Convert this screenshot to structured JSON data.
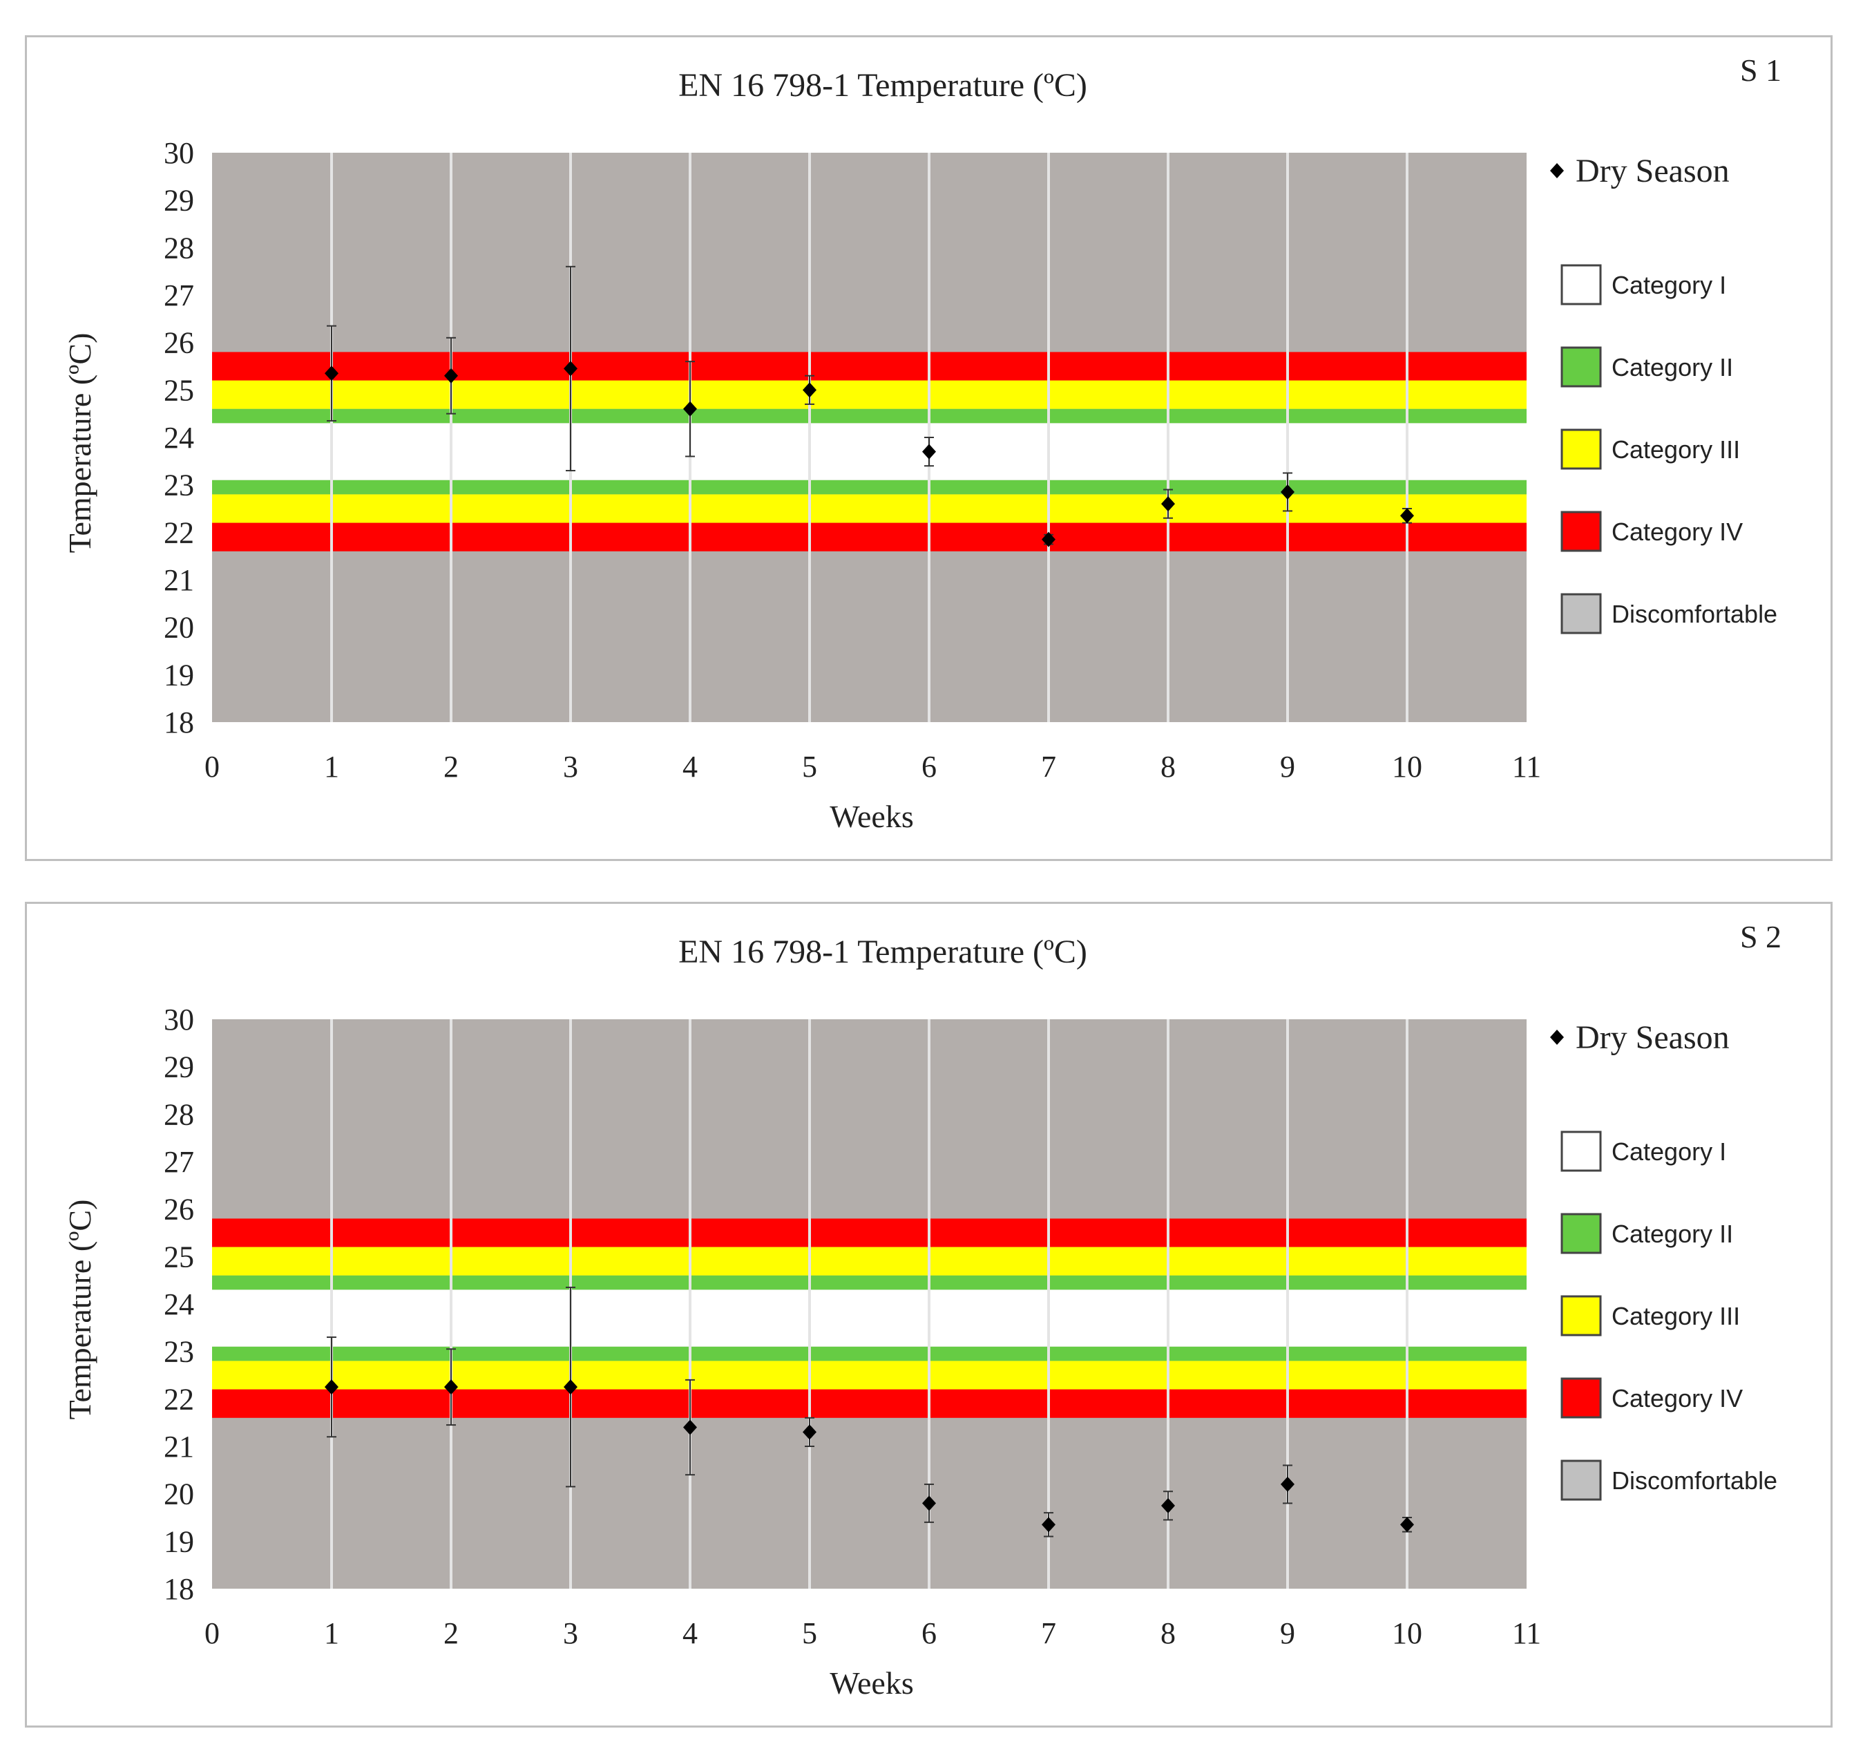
{
  "chart_data": [
    {
      "type": "scatter",
      "panel_label": "S 1",
      "title": "EN 16 798-1 Temperature (ºC)",
      "xlabel": "Weeks",
      "ylabel": "Temperature (ºC)",
      "xlim": [
        0,
        11
      ],
      "ylim": [
        18,
        30
      ],
      "x_ticks": [
        "0",
        "1",
        "2",
        "3",
        "4",
        "5",
        "6",
        "7",
        "8",
        "9",
        "10",
        "11"
      ],
      "y_ticks": [
        "18",
        "19",
        "20",
        "21",
        "22",
        "23",
        "24",
        "25",
        "26",
        "27",
        "28",
        "29",
        "30"
      ],
      "series": [
        {
          "name": "Dry Season",
          "x": [
            1,
            2,
            3,
            4,
            5,
            6,
            7,
            8,
            9,
            10
          ],
          "y": [
            25.35,
            25.3,
            25.45,
            24.6,
            25.0,
            23.7,
            21.85,
            22.6,
            22.85,
            22.35
          ],
          "err": [
            1.0,
            0.8,
            2.15,
            1.0,
            0.3,
            0.3,
            0.1,
            0.3,
            0.4,
            0.15
          ]
        }
      ],
      "bands": [
        {
          "category": "Category IV",
          "from": 25.2,
          "to": 25.8,
          "color": "#ff0000"
        },
        {
          "category": "Category III",
          "from": 24.6,
          "to": 25.2,
          "color": "#ffff00"
        },
        {
          "category": "Category II",
          "from": 24.3,
          "to": 24.6,
          "color": "#66cc44"
        },
        {
          "category": "Category I",
          "from": 23.1,
          "to": 24.3,
          "color": "#ffffff"
        },
        {
          "category": "Category II",
          "from": 22.8,
          "to": 23.1,
          "color": "#66cc44"
        },
        {
          "category": "Category III",
          "from": 22.2,
          "to": 22.8,
          "color": "#ffff00"
        },
        {
          "category": "Category IV",
          "from": 21.6,
          "to": 22.2,
          "color": "#ff0000"
        }
      ]
    },
    {
      "type": "scatter",
      "panel_label": "S 2",
      "title": "EN 16 798-1 Temperature (ºC)",
      "xlabel": "Weeks",
      "ylabel": "Temperature (ºC)",
      "xlim": [
        0,
        11
      ],
      "ylim": [
        18,
        30
      ],
      "x_ticks": [
        "0",
        "1",
        "2",
        "3",
        "4",
        "5",
        "6",
        "7",
        "8",
        "9",
        "10",
        "11"
      ],
      "y_ticks": [
        "18",
        "19",
        "20",
        "21",
        "22",
        "23",
        "24",
        "25",
        "26",
        "27",
        "28",
        "29",
        "30"
      ],
      "series": [
        {
          "name": "Dry Season",
          "x": [
            1,
            2,
            3,
            4,
            5,
            6,
            7,
            8,
            9,
            10
          ],
          "y": [
            22.25,
            22.25,
            22.25,
            21.4,
            21.3,
            19.8,
            19.35,
            19.75,
            20.2,
            19.35
          ],
          "err": [
            1.05,
            0.8,
            2.1,
            1.0,
            0.3,
            0.4,
            0.25,
            0.3,
            0.4,
            0.15
          ]
        }
      ],
      "bands": [
        {
          "category": "Category IV",
          "from": 25.2,
          "to": 25.8,
          "color": "#ff0000"
        },
        {
          "category": "Category III",
          "from": 24.6,
          "to": 25.2,
          "color": "#ffff00"
        },
        {
          "category": "Category II",
          "from": 24.3,
          "to": 24.6,
          "color": "#66cc44"
        },
        {
          "category": "Category I",
          "from": 23.1,
          "to": 24.3,
          "color": "#ffffff"
        },
        {
          "category": "Category II",
          "from": 22.8,
          "to": 23.1,
          "color": "#66cc44"
        },
        {
          "category": "Category III",
          "from": 22.2,
          "to": 22.8,
          "color": "#ffff00"
        },
        {
          "category": "Category IV",
          "from": 21.6,
          "to": 22.2,
          "color": "#ff0000"
        }
      ]
    }
  ],
  "legend": {
    "series_label": "Dry Season",
    "categories": [
      {
        "label": "Category I",
        "color": "#ffffff"
      },
      {
        "label": "Category II",
        "color": "#66cc44"
      },
      {
        "label": "Category III",
        "color": "#ffff00"
      },
      {
        "label": "Category IV",
        "color": "#ff0000"
      },
      {
        "label": "Discomfortable",
        "color": "#c0c0c0"
      }
    ]
  },
  "colors": {
    "plot_background": "#b3aeab",
    "gridline": "#e4e4e4",
    "marker": "#000000"
  }
}
